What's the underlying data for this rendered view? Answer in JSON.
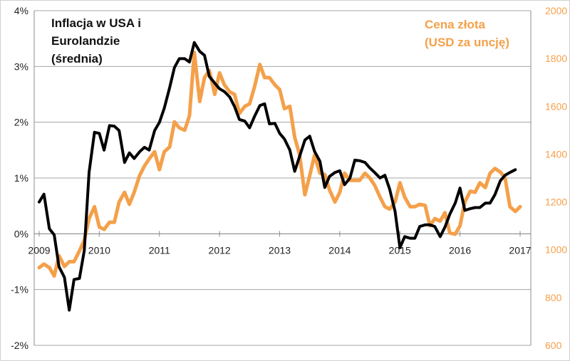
{
  "chart_data": {
    "type": "line",
    "legend_left": [
      "Inflacja w USA i",
      "Eurolandzie",
      "(średnia)"
    ],
    "legend_right": [
      "Cena złota",
      "(USD za uncję)"
    ],
    "x_ticks": [
      "2009",
      "2010",
      "2011",
      "2012",
      "2013",
      "2014",
      "2015",
      "2016",
      "2017"
    ],
    "y_left_ticks": [
      "4%",
      "3%",
      "2%",
      "1%",
      "0%",
      "-1%",
      "-2%"
    ],
    "y_right_ticks": [
      "2000",
      "1800",
      "1600",
      "1400",
      "1200",
      "1000",
      "800",
      "600"
    ],
    "xlim": [
      2009.0,
      2017.0
    ],
    "ylim_left": [
      -2,
      4
    ],
    "ylim_right": [
      600,
      2000
    ],
    "grid": true,
    "colors": {
      "inflation": "#000000",
      "gold": "#f4a04a",
      "grid": "#a6a6a6"
    },
    "series": [
      {
        "axis": "left",
        "points": [
          [
            2009.0,
            0.57
          ],
          [
            2009.08,
            0.71
          ],
          [
            2009.17,
            0.09
          ],
          [
            2009.25,
            -0.02
          ],
          [
            2009.33,
            -0.59
          ],
          [
            2009.42,
            -0.78
          ],
          [
            2009.5,
            -1.37
          ],
          [
            2009.58,
            -0.82
          ],
          [
            2009.67,
            -0.8
          ],
          [
            2009.75,
            -0.3
          ],
          [
            2009.83,
            1.1
          ],
          [
            2009.92,
            1.82
          ],
          [
            2010.0,
            1.8
          ],
          [
            2010.08,
            1.5
          ],
          [
            2010.17,
            1.94
          ],
          [
            2010.25,
            1.93
          ],
          [
            2010.33,
            1.85
          ],
          [
            2010.42,
            1.28
          ],
          [
            2010.5,
            1.45
          ],
          [
            2010.58,
            1.35
          ],
          [
            2010.67,
            1.47
          ],
          [
            2010.75,
            1.55
          ],
          [
            2010.83,
            1.5
          ],
          [
            2010.92,
            1.85
          ],
          [
            2011.0,
            2.0
          ],
          [
            2011.08,
            2.25
          ],
          [
            2011.17,
            2.62
          ],
          [
            2011.25,
            2.98
          ],
          [
            2011.33,
            3.14
          ],
          [
            2011.42,
            3.14
          ],
          [
            2011.5,
            3.08
          ],
          [
            2011.58,
            3.43
          ],
          [
            2011.67,
            3.27
          ],
          [
            2011.75,
            3.2
          ],
          [
            2011.83,
            2.82
          ],
          [
            2011.92,
            2.7
          ],
          [
            2012.0,
            2.6
          ],
          [
            2012.08,
            2.55
          ],
          [
            2012.17,
            2.45
          ],
          [
            2012.25,
            2.28
          ],
          [
            2012.33,
            2.05
          ],
          [
            2012.42,
            2.02
          ],
          [
            2012.5,
            1.9
          ],
          [
            2012.58,
            2.1
          ],
          [
            2012.67,
            2.3
          ],
          [
            2012.75,
            2.33
          ],
          [
            2012.83,
            1.97
          ],
          [
            2012.92,
            1.98
          ],
          [
            2013.0,
            1.8
          ],
          [
            2013.08,
            1.7
          ],
          [
            2013.17,
            1.5
          ],
          [
            2013.25,
            1.12
          ],
          [
            2013.33,
            1.38
          ],
          [
            2013.42,
            1.68
          ],
          [
            2013.5,
            1.75
          ],
          [
            2013.58,
            1.48
          ],
          [
            2013.67,
            1.3
          ],
          [
            2013.75,
            0.83
          ],
          [
            2013.83,
            1.03
          ],
          [
            2013.92,
            1.1
          ],
          [
            2014.0,
            1.13
          ],
          [
            2014.08,
            0.88
          ],
          [
            2014.17,
            1.0
          ],
          [
            2014.25,
            1.32
          ],
          [
            2014.33,
            1.31
          ],
          [
            2014.42,
            1.28
          ],
          [
            2014.5,
            1.18
          ],
          [
            2014.58,
            1.1
          ],
          [
            2014.67,
            1.0
          ],
          [
            2014.75,
            1.05
          ],
          [
            2014.83,
            0.8
          ],
          [
            2014.92,
            0.4
          ],
          [
            2015.0,
            -0.25
          ],
          [
            2015.08,
            -0.05
          ],
          [
            2015.17,
            -0.08
          ],
          [
            2015.25,
            -0.08
          ],
          [
            2015.33,
            0.13
          ],
          [
            2015.42,
            0.16
          ],
          [
            2015.5,
            0.16
          ],
          [
            2015.58,
            0.13
          ],
          [
            2015.67,
            -0.05
          ],
          [
            2015.75,
            0.12
          ],
          [
            2015.83,
            0.35
          ],
          [
            2015.92,
            0.55
          ],
          [
            2016.0,
            0.82
          ],
          [
            2016.08,
            0.42
          ],
          [
            2016.17,
            0.45
          ],
          [
            2016.25,
            0.47
          ],
          [
            2016.33,
            0.47
          ],
          [
            2016.42,
            0.55
          ],
          [
            2016.5,
            0.55
          ],
          [
            2016.58,
            0.7
          ],
          [
            2016.67,
            0.95
          ],
          [
            2016.75,
            1.05
          ],
          [
            2016.83,
            1.1
          ],
          [
            2016.92,
            1.15
          ]
        ]
      },
      {
        "axis": "right",
        "points": [
          [
            2009.0,
            925
          ],
          [
            2009.08,
            940
          ],
          [
            2009.17,
            925
          ],
          [
            2009.25,
            890
          ],
          [
            2009.33,
            975
          ],
          [
            2009.42,
            930
          ],
          [
            2009.5,
            950
          ],
          [
            2009.58,
            950
          ],
          [
            2009.67,
            995
          ],
          [
            2009.75,
            1040
          ],
          [
            2009.83,
            1130
          ],
          [
            2009.92,
            1180
          ],
          [
            2010.0,
            1095
          ],
          [
            2010.08,
            1085
          ],
          [
            2010.17,
            1115
          ],
          [
            2010.25,
            1115
          ],
          [
            2010.33,
            1200
          ],
          [
            2010.42,
            1240
          ],
          [
            2010.5,
            1190
          ],
          [
            2010.58,
            1240
          ],
          [
            2010.67,
            1310
          ],
          [
            2010.75,
            1350
          ],
          [
            2010.83,
            1380
          ],
          [
            2010.92,
            1410
          ],
          [
            2011.0,
            1335
          ],
          [
            2011.08,
            1410
          ],
          [
            2011.17,
            1430
          ],
          [
            2011.25,
            1535
          ],
          [
            2011.33,
            1510
          ],
          [
            2011.42,
            1500
          ],
          [
            2011.5,
            1560
          ],
          [
            2011.58,
            1825
          ],
          [
            2011.67,
            1620
          ],
          [
            2011.75,
            1720
          ],
          [
            2011.83,
            1750
          ],
          [
            2011.92,
            1650
          ],
          [
            2012.0,
            1740
          ],
          [
            2012.08,
            1690
          ],
          [
            2012.17,
            1660
          ],
          [
            2012.25,
            1650
          ],
          [
            2012.33,
            1570
          ],
          [
            2012.42,
            1600
          ],
          [
            2012.5,
            1610
          ],
          [
            2012.58,
            1680
          ],
          [
            2012.67,
            1775
          ],
          [
            2012.75,
            1720
          ],
          [
            2012.83,
            1720
          ],
          [
            2012.92,
            1690
          ],
          [
            2013.0,
            1670
          ],
          [
            2013.08,
            1590
          ],
          [
            2013.17,
            1600
          ],
          [
            2013.25,
            1470
          ],
          [
            2013.33,
            1400
          ],
          [
            2013.42,
            1230
          ],
          [
            2013.5,
            1310
          ],
          [
            2013.58,
            1395
          ],
          [
            2013.67,
            1320
          ],
          [
            2013.75,
            1315
          ],
          [
            2013.83,
            1250
          ],
          [
            2013.92,
            1200
          ],
          [
            2014.0,
            1240
          ],
          [
            2014.08,
            1320
          ],
          [
            2014.17,
            1290
          ],
          [
            2014.25,
            1290
          ],
          [
            2014.33,
            1290
          ],
          [
            2014.42,
            1320
          ],
          [
            2014.5,
            1300
          ],
          [
            2014.58,
            1270
          ],
          [
            2014.67,
            1220
          ],
          [
            2014.75,
            1180
          ],
          [
            2014.83,
            1170
          ],
          [
            2014.92,
            1200
          ],
          [
            2015.0,
            1280
          ],
          [
            2015.08,
            1220
          ],
          [
            2015.17,
            1180
          ],
          [
            2015.25,
            1180
          ],
          [
            2015.33,
            1190
          ],
          [
            2015.42,
            1185
          ],
          [
            2015.5,
            1100
          ],
          [
            2015.58,
            1130
          ],
          [
            2015.67,
            1120
          ],
          [
            2015.75,
            1155
          ],
          [
            2015.83,
            1070
          ],
          [
            2015.92,
            1065
          ],
          [
            2016.0,
            1100
          ],
          [
            2016.08,
            1200
          ],
          [
            2016.17,
            1245
          ],
          [
            2016.25,
            1240
          ],
          [
            2016.33,
            1280
          ],
          [
            2016.42,
            1260
          ],
          [
            2016.5,
            1320
          ],
          [
            2016.58,
            1340
          ],
          [
            2016.67,
            1325
          ],
          [
            2016.75,
            1300
          ],
          [
            2016.83,
            1180
          ],
          [
            2016.92,
            1160
          ],
          [
            2017.0,
            1180
          ]
        ]
      }
    ]
  }
}
